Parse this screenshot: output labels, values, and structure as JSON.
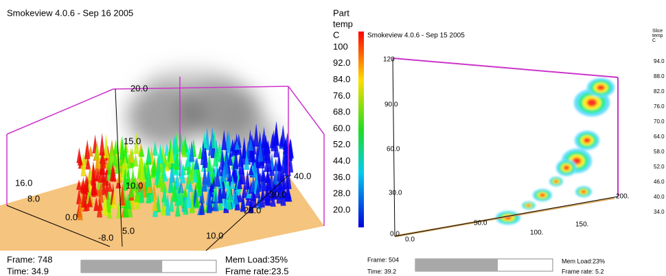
{
  "left": {
    "title": "Smokeview 4.0.6 - Sep 16 2005",
    "axis_labels": [
      "20.0",
      "15.0",
      "10.0",
      "5.0",
      "16.0",
      "8.0",
      "0.0",
      "-8.0",
      "40.0",
      "30.0",
      "20.0",
      "10.0"
    ],
    "status": {
      "frame": "Frame: 748",
      "time": "Time: 34.9",
      "mem": "Mem Load:35%",
      "rate": "Frame rate:23.5",
      "progress": 0.6
    }
  },
  "colorbar": {
    "title": [
      "Part",
      "temp",
      "C"
    ],
    "labels": [
      "100",
      "92.0",
      "84.0",
      "76.0",
      "68.0",
      "60.0",
      "52.0",
      "44.0",
      "36.0",
      "28.0",
      "20.0"
    ]
  },
  "right": {
    "title": "Smokeview 4.0.6 - Sep 15 2005",
    "axis_labels": [
      "120",
      "90.0",
      "60.0",
      "30.0",
      "0.0",
      "0.0",
      "50.0",
      "100.",
      "150.",
      "200."
    ],
    "colorbar": {
      "title": [
        "Slice",
        "temp",
        "C"
      ],
      "labels": [
        "94.0",
        "88.0",
        "82.0",
        "76.0",
        "70.0",
        "64.0",
        "58.0",
        "52.0",
        "46.0",
        "40.0",
        "34.0"
      ]
    },
    "status": {
      "frame": "Frame: 504",
      "time": "Time: 39.2",
      "mem": "Mem Load:23%",
      "rate": "Frame rate: 5.2",
      "progress": 0.6
    }
  }
}
